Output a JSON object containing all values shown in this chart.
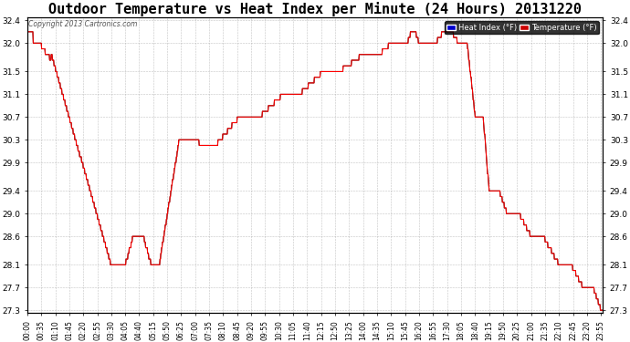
{
  "title": "Outdoor Temperature vs Heat Index per Minute (24 Hours) 20131220",
  "copyright": "Copyright 2013 Cartronics.com",
  "legend_heat_index": "Heat Index (°F)",
  "legend_temperature": "Temperature (°F)",
  "ylim": [
    27.3,
    32.4
  ],
  "yticks": [
    27.3,
    27.7,
    28.1,
    28.6,
    29.0,
    29.4,
    29.9,
    30.3,
    30.7,
    31.1,
    31.5,
    32.0,
    32.4
  ],
  "background_color": "#ffffff",
  "plot_bg_color": "#ffffff",
  "grid_color": "#aaaaaa",
  "title_fontsize": 11,
  "heat_index_color": "#000000",
  "temperature_color": "#ff0000",
  "heat_index_legend_color": "#0000cc",
  "temperature_legend_color": "#cc0000"
}
